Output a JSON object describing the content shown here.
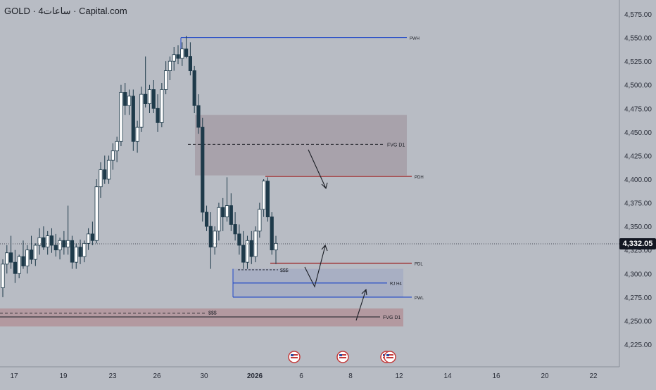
{
  "title": {
    "symbol": "GOLD",
    "separator": "·",
    "timeframe": "4ساعات",
    "source": "Capital.com"
  },
  "colors": {
    "background": "#b8bcc4",
    "candle_up": "#ffffff",
    "candle_down": "#1e3a4a",
    "blue_line": "#1f47c7",
    "red_line": "#9b1d1d",
    "fvg_box": "#a39aa3",
    "pink_zone": "#b08a92",
    "blue_box": "#9aa4c2",
    "axis_text": "#2a2e39"
  },
  "current_price": "4,332.05",
  "chart_data": {
    "type": "candlestick",
    "y_axis": {
      "ticks": [
        "4,575.00",
        "4,550.00",
        "4,525.00",
        "4,500.00",
        "4,475.00",
        "4,450.00",
        "4,425.00",
        "4,400.00",
        "4,375.00",
        "4,350.00",
        "4,325.00",
        "4,300.00",
        "4,275.00",
        "4,250.00",
        "4,225.00"
      ],
      "tick_values": [
        4575,
        4550,
        4525,
        4500,
        4475,
        4450,
        4425,
        4400,
        4375,
        4350,
        4325,
        4300,
        4275,
        4250,
        4225
      ],
      "range": [
        4210,
        4590
      ]
    },
    "x_axis": {
      "ticks": [
        "17",
        "19",
        "23",
        "26",
        "30",
        "2026",
        "6",
        "8",
        "12",
        "14",
        "16",
        "20",
        "22"
      ]
    },
    "candles": [
      {
        "o": 4285,
        "h": 4315,
        "l": 4275,
        "c": 4310
      },
      {
        "o": 4310,
        "h": 4330,
        "l": 4300,
        "c": 4322
      },
      {
        "o": 4322,
        "h": 4340,
        "l": 4305,
        "c": 4312
      },
      {
        "o": 4312,
        "h": 4325,
        "l": 4290,
        "c": 4300
      },
      {
        "o": 4300,
        "h": 4320,
        "l": 4295,
        "c": 4318
      },
      {
        "o": 4318,
        "h": 4335,
        "l": 4305,
        "c": 4308
      },
      {
        "o": 4308,
        "h": 4330,
        "l": 4300,
        "c": 4325
      },
      {
        "o": 4325,
        "h": 4340,
        "l": 4310,
        "c": 4315
      },
      {
        "o": 4315,
        "h": 4332,
        "l": 4308,
        "c": 4330
      },
      {
        "o": 4330,
        "h": 4348,
        "l": 4320,
        "c": 4338
      },
      {
        "o": 4338,
        "h": 4350,
        "l": 4325,
        "c": 4328
      },
      {
        "o": 4328,
        "h": 4345,
        "l": 4320,
        "c": 4340
      },
      {
        "o": 4340,
        "h": 4348,
        "l": 4322,
        "c": 4330
      },
      {
        "o": 4330,
        "h": 4342,
        "l": 4318,
        "c": 4325
      },
      {
        "o": 4325,
        "h": 4338,
        "l": 4315,
        "c": 4335
      },
      {
        "o": 4335,
        "h": 4345,
        "l": 4320,
        "c": 4328
      },
      {
        "o": 4328,
        "h": 4372,
        "l": 4320,
        "c": 4335
      },
      {
        "o": 4335,
        "h": 4340,
        "l": 4305,
        "c": 4312
      },
      {
        "o": 4312,
        "h": 4332,
        "l": 4305,
        "c": 4328
      },
      {
        "o": 4328,
        "h": 4336,
        "l": 4310,
        "c": 4318
      },
      {
        "o": 4318,
        "h": 4335,
        "l": 4312,
        "c": 4332
      },
      {
        "o": 4332,
        "h": 4348,
        "l": 4325,
        "c": 4342
      },
      {
        "o": 4342,
        "h": 4355,
        "l": 4330,
        "c": 4335
      },
      {
        "o": 4335,
        "h": 4400,
        "l": 4332,
        "c": 4392
      },
      {
        "o": 4392,
        "h": 4418,
        "l": 4380,
        "c": 4410
      },
      {
        "o": 4410,
        "h": 4425,
        "l": 4395,
        "c": 4400
      },
      {
        "o": 4400,
        "h": 4425,
        "l": 4395,
        "c": 4420
      },
      {
        "o": 4420,
        "h": 4438,
        "l": 4410,
        "c": 4430
      },
      {
        "o": 4430,
        "h": 4445,
        "l": 4418,
        "c": 4440
      },
      {
        "o": 4440,
        "h": 4500,
        "l": 4435,
        "c": 4492
      },
      {
        "o": 4492,
        "h": 4502,
        "l": 4468,
        "c": 4478
      },
      {
        "o": 4478,
        "h": 4495,
        "l": 4468,
        "c": 4488
      },
      {
        "o": 4488,
        "h": 4495,
        "l": 4430,
        "c": 4440
      },
      {
        "o": 4440,
        "h": 4462,
        "l": 4428,
        "c": 4455
      },
      {
        "o": 4455,
        "h": 4498,
        "l": 4450,
        "c": 4490
      },
      {
        "o": 4490,
        "h": 4530,
        "l": 4476,
        "c": 4480
      },
      {
        "o": 4480,
        "h": 4500,
        "l": 4470,
        "c": 4495
      },
      {
        "o": 4495,
        "h": 4505,
        "l": 4470,
        "c": 4475
      },
      {
        "o": 4475,
        "h": 4490,
        "l": 4450,
        "c": 4460
      },
      {
        "o": 4460,
        "h": 4502,
        "l": 4455,
        "c": 4495
      },
      {
        "o": 4495,
        "h": 4525,
        "l": 4490,
        "c": 4515
      },
      {
        "o": 4515,
        "h": 4530,
        "l": 4505,
        "c": 4525
      },
      {
        "o": 4525,
        "h": 4540,
        "l": 4515,
        "c": 4532
      },
      {
        "o": 4532,
        "h": 4542,
        "l": 4522,
        "c": 4528
      },
      {
        "o": 4528,
        "h": 4545,
        "l": 4520,
        "c": 4538
      },
      {
        "o": 4538,
        "h": 4552,
        "l": 4528,
        "c": 4530
      },
      {
        "o": 4530,
        "h": 4545,
        "l": 4510,
        "c": 4515
      },
      {
        "o": 4515,
        "h": 4520,
        "l": 4470,
        "c": 4478
      },
      {
        "o": 4478,
        "h": 4490,
        "l": 4448,
        "c": 4455
      },
      {
        "o": 4455,
        "h": 4465,
        "l": 4355,
        "c": 4365
      },
      {
        "o": 4365,
        "h": 4372,
        "l": 4345,
        "c": 4350
      },
      {
        "o": 4350,
        "h": 4365,
        "l": 4305,
        "c": 4328
      },
      {
        "o": 4328,
        "h": 4350,
        "l": 4320,
        "c": 4345
      },
      {
        "o": 4345,
        "h": 4375,
        "l": 4335,
        "c": 4370
      },
      {
        "o": 4370,
        "h": 4380,
        "l": 4345,
        "c": 4360
      },
      {
        "o": 4360,
        "h": 4402,
        "l": 4355,
        "c": 4372
      },
      {
        "o": 4372,
        "h": 4385,
        "l": 4345,
        "c": 4352
      },
      {
        "o": 4352,
        "h": 4365,
        "l": 4335,
        "c": 4342
      },
      {
        "o": 4342,
        "h": 4352,
        "l": 4320,
        "c": 4330
      },
      {
        "o": 4330,
        "h": 4345,
        "l": 4305,
        "c": 4312
      },
      {
        "o": 4312,
        "h": 4340,
        "l": 4305,
        "c": 4335
      },
      {
        "o": 4335,
        "h": 4345,
        "l": 4310,
        "c": 4318
      },
      {
        "o": 4318,
        "h": 4350,
        "l": 4312,
        "c": 4345
      },
      {
        "o": 4345,
        "h": 4375,
        "l": 4338,
        "c": 4368
      },
      {
        "o": 4368,
        "h": 4400,
        "l": 4360,
        "c": 4398
      },
      {
        "o": 4398,
        "h": 4402,
        "l": 4355,
        "c": 4360
      },
      {
        "o": 4360,
        "h": 4365,
        "l": 4320,
        "c": 4325
      },
      {
        "o": 4325,
        "h": 4340,
        "l": 4310,
        "c": 4332
      }
    ],
    "zones": [
      {
        "name": "fvg-d1-upper",
        "label": "FVG D1",
        "y_top": 4468,
        "y_bottom": 4404,
        "dashed_level": 4437
      },
      {
        "name": "fvg-d1-lower",
        "label": "FVG D1",
        "y_top": 4263,
        "y_bottom": 4244,
        "solid_level": 4254,
        "dashed_level": 4258
      }
    ],
    "levels": [
      {
        "name": "pwh",
        "label": "PWH",
        "value": 4550,
        "color": "blue"
      },
      {
        "name": "pdh",
        "label": "PDH",
        "value": 4403,
        "color": "red"
      },
      {
        "name": "pdl",
        "label": "PDL",
        "value": 4311,
        "color": "red"
      },
      {
        "name": "rj-h4",
        "label": "RJ H4",
        "value": 4290,
        "color": "blue"
      },
      {
        "name": "pwl",
        "label": "PWL",
        "value": 4275,
        "color": "blue"
      }
    ],
    "annotations": [
      {
        "name": "liquidity-upper",
        "label": "$$$",
        "value": 4304
      },
      {
        "name": "liquidity-lower",
        "label": "$$$",
        "value": 4258
      }
    ]
  }
}
